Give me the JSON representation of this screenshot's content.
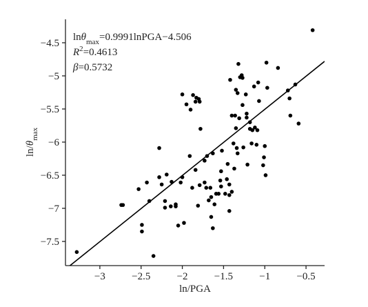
{
  "chart_data": {
    "type": "scatter",
    "x_label": "ln/PGA",
    "y_label": [
      {
        "text": "ln/"
      },
      {
        "text": "θ",
        "style": "italic"
      },
      {
        "text": "max",
        "style": "sub"
      }
    ],
    "annotations": [
      [
        {
          "text": "ln"
        },
        {
          "text": "θ",
          "style": "italic"
        },
        {
          "text": "max",
          "style": "sub"
        },
        {
          "text": "=0.9991lnPGA−4.506"
        }
      ],
      [
        {
          "text": "R",
          "style": "italic"
        },
        {
          "text": "2",
          "style": "sup"
        },
        {
          "text": "=0.4613"
        }
      ],
      [
        {
          "text": "β",
          "style": "italic"
        },
        {
          "text": "=0.5732"
        }
      ]
    ],
    "fit": {
      "slope": 0.9991,
      "intercept": -4.506
    },
    "color": "#000000",
    "xlim": [
      -3.417,
      -0.275
    ],
    "ylim": [
      -7.865,
      -4.146
    ],
    "xticks": [
      {
        "value": -3,
        "label": "−3"
      },
      {
        "value": -2.5,
        "label": "−2.5"
      },
      {
        "value": -2,
        "label": "−2"
      },
      {
        "value": -1.5,
        "label": "−1.5"
      },
      {
        "value": -1,
        "label": "−1"
      },
      {
        "value": -0.5,
        "label": "−0.5"
      }
    ],
    "yticks": [
      {
        "value": -4.5,
        "label": "−4.5"
      },
      {
        "value": -5,
        "label": "−5"
      },
      {
        "value": -5.5,
        "label": "−5.5"
      },
      {
        "value": -6,
        "label": "−6"
      },
      {
        "value": -6.5,
        "label": "−6.5"
      },
      {
        "value": -7,
        "label": "−7"
      },
      {
        "value": -7.5,
        "label": "−7.5"
      }
    ],
    "x": [
      -3.28,
      -2.74,
      -2.72,
      -2.53,
      -2.49,
      -2.49,
      -2.43,
      -2.4,
      -2.35,
      -2.28,
      -2.28,
      -2.25,
      -2.19,
      -2.21,
      -2.21,
      -2.14,
      -2.13,
      -2.08,
      -2.08,
      -2.05,
      -2.02,
      -2.0,
      -1.98,
      -2.0,
      -1.95,
      -1.9,
      -1.87,
      -1.84,
      -1.83,
      -1.8,
      -1.81,
      -1.79,
      -1.78,
      -1.79,
      -1.91,
      -1.88,
      -1.84,
      -1.73,
      -1.71,
      -1.66,
      -1.68,
      -1.65,
      -1.65,
      -1.63,
      -1.61,
      -1.59,
      -1.7,
      -1.56,
      -1.54,
      -1.53,
      -1.52,
      -1.48,
      -1.46,
      -1.43,
      -1.43,
      -1.45,
      -1.43,
      -1.4,
      -1.38,
      -1.4,
      -1.35,
      -1.36,
      -1.31,
      -1.33,
      -1.42,
      -1.35,
      -1.32,
      -1.3,
      -1.28,
      -1.27,
      -1.27,
      -1.22,
      -1.23,
      -1.22,
      -1.18,
      -1.18,
      -1.13,
      -1.08,
      -1.16,
      -1.15,
      -1.12,
      -1.09,
      -1.1,
      -1.07,
      -1.02,
      -1.01,
      -1.0,
      -0.99,
      -0.98,
      -0.97,
      -0.84,
      -0.72,
      -0.7,
      -0.69,
      -0.63,
      -0.59,
      -0.42,
      -1.21,
      -1.34,
      -1.33,
      -1.26,
      -1.53,
      -1.63,
      -1.37,
      -1.73
    ],
    "values": [
      -7.66,
      -6.95,
      -6.95,
      -6.71,
      -7.25,
      -7.35,
      -6.61,
      -6.89,
      -7.72,
      -6.09,
      -6.53,
      -6.64,
      -6.49,
      -6.89,
      -6.99,
      -6.97,
      -6.6,
      -6.97,
      -6.94,
      -7.26,
      -6.61,
      -6.53,
      -7.22,
      -5.28,
      -5.43,
      -5.51,
      -5.29,
      -5.39,
      -5.33,
      -5.35,
      -6.96,
      -5.39,
      -5.8,
      -6.65,
      -6.21,
      -6.69,
      -6.42,
      -6.28,
      -6.69,
      -6.69,
      -6.88,
      -6.83,
      -7.13,
      -7.3,
      -6.94,
      -6.78,
      -6.21,
      -6.78,
      -6.58,
      -6.44,
      -6.13,
      -6.78,
      -6.56,
      -7.04,
      -6.8,
      -6.33,
      -6.64,
      -6.75,
      -6.02,
      -5.6,
      -5.79,
      -5.6,
      -5.64,
      -5.26,
      -5.06,
      -5.21,
      -4.82,
      -5.02,
      -4.99,
      -5.03,
      -5.44,
      -5.63,
      -5.28,
      -5.57,
      -5.8,
      -5.7,
      -5.16,
      -5.1,
      -6.02,
      -5.82,
      -5.78,
      -5.82,
      -6.04,
      -5.38,
      -6.35,
      -6.23,
      -6.06,
      -6.5,
      -4.8,
      -5.18,
      -4.88,
      -5.22,
      -5.34,
      -5.6,
      -5.13,
      -5.72,
      -4.31,
      -6.34,
      -6.09,
      -6.17,
      -6.08,
      -6.67,
      -6.17,
      -6.4,
      -6.61
    ]
  }
}
